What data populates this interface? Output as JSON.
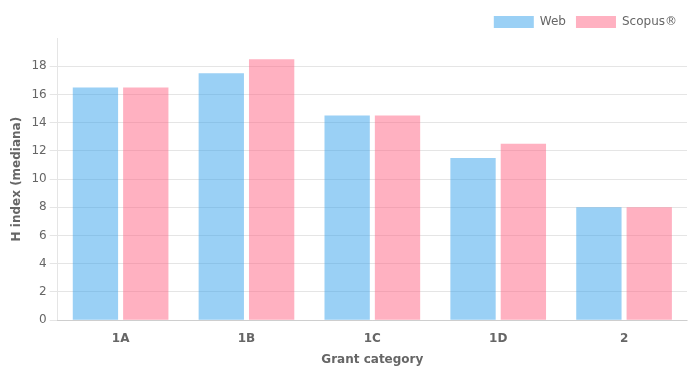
{
  "chart_data": {
    "type": "bar",
    "categories": [
      "1A",
      "1B",
      "1C",
      "1D",
      "2"
    ],
    "series": [
      {
        "name": "Web",
        "values": [
          16.5,
          17.5,
          14.5,
          11.5,
          8.0
        ]
      },
      {
        "name": "Scopus®",
        "values": [
          16.5,
          18.5,
          14.5,
          12.5,
          8.0
        ]
      }
    ],
    "xlabel": "Grant category",
    "ylabel": "H index (mediana)",
    "ylim": [
      0,
      20
    ],
    "yticks": [
      0,
      2,
      4,
      6,
      8,
      10,
      12,
      14,
      16,
      18
    ],
    "grid": true,
    "legend": "upper right"
  }
}
